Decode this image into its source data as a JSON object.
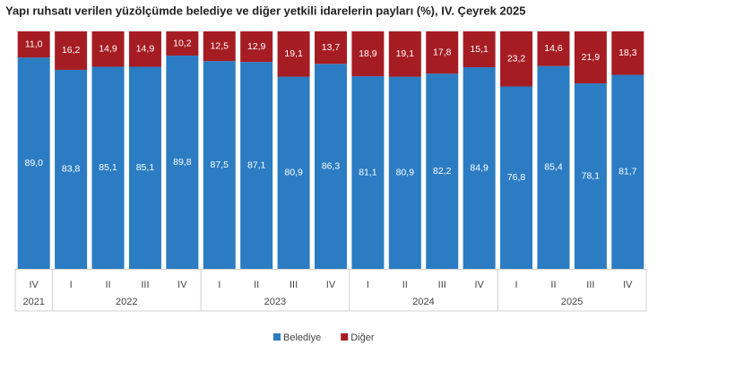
{
  "chart_data": {
    "type": "stacked_bar_100",
    "title": "Yapı ruhsatı verilen yüzölçümde belediye ve diğer yetkili idarelerin payları (%), IV. Çeyrek 2025",
    "categories": [
      "IV",
      "I",
      "II",
      "III",
      "IV",
      "I",
      "II",
      "III",
      "IV",
      "I",
      "II",
      "III",
      "IV",
      "I",
      "II",
      "III",
      "IV"
    ],
    "group_labels": [
      "2021",
      "2022",
      null,
      null,
      null,
      "2023",
      null,
      null,
      null,
      "2024",
      null,
      null,
      null,
      "2025",
      null,
      null,
      null
    ],
    "series": [
      {
        "name": "Belediye",
        "color": "#2b7cc2",
        "values": [
          89.0,
          83.8,
          85.1,
          85.1,
          89.8,
          87.5,
          87.1,
          80.9,
          86.3,
          81.1,
          80.9,
          82.2,
          84.9,
          76.8,
          85.4,
          78.1,
          81.7
        ],
        "value_labels": [
          "89,0",
          "83,8",
          "85,1",
          "85,1",
          "89,8",
          "87,5",
          "87,1",
          "80,9",
          "86,3",
          "81,1",
          "80,9",
          "82,2",
          "84,9",
          "76,8",
          "85,4",
          "78,1",
          "81,7"
        ]
      },
      {
        "name": "Diğer",
        "color": "#a51d23",
        "values": [
          11.0,
          16.2,
          14.9,
          14.9,
          10.2,
          12.5,
          12.9,
          19.1,
          13.7,
          18.9,
          19.1,
          17.8,
          15.1,
          23.2,
          14.6,
          21.9,
          18.3
        ],
        "value_labels": [
          "11,0",
          "16,2",
          "14,9",
          "14,9",
          "10,2",
          "12,5",
          "12,9",
          "19,1",
          "13,7",
          "18,9",
          "19,1",
          "17,8",
          "15,1",
          "23,2",
          "14,6",
          "21,9",
          "18,3"
        ]
      }
    ],
    "ylim": [
      0,
      100
    ]
  }
}
